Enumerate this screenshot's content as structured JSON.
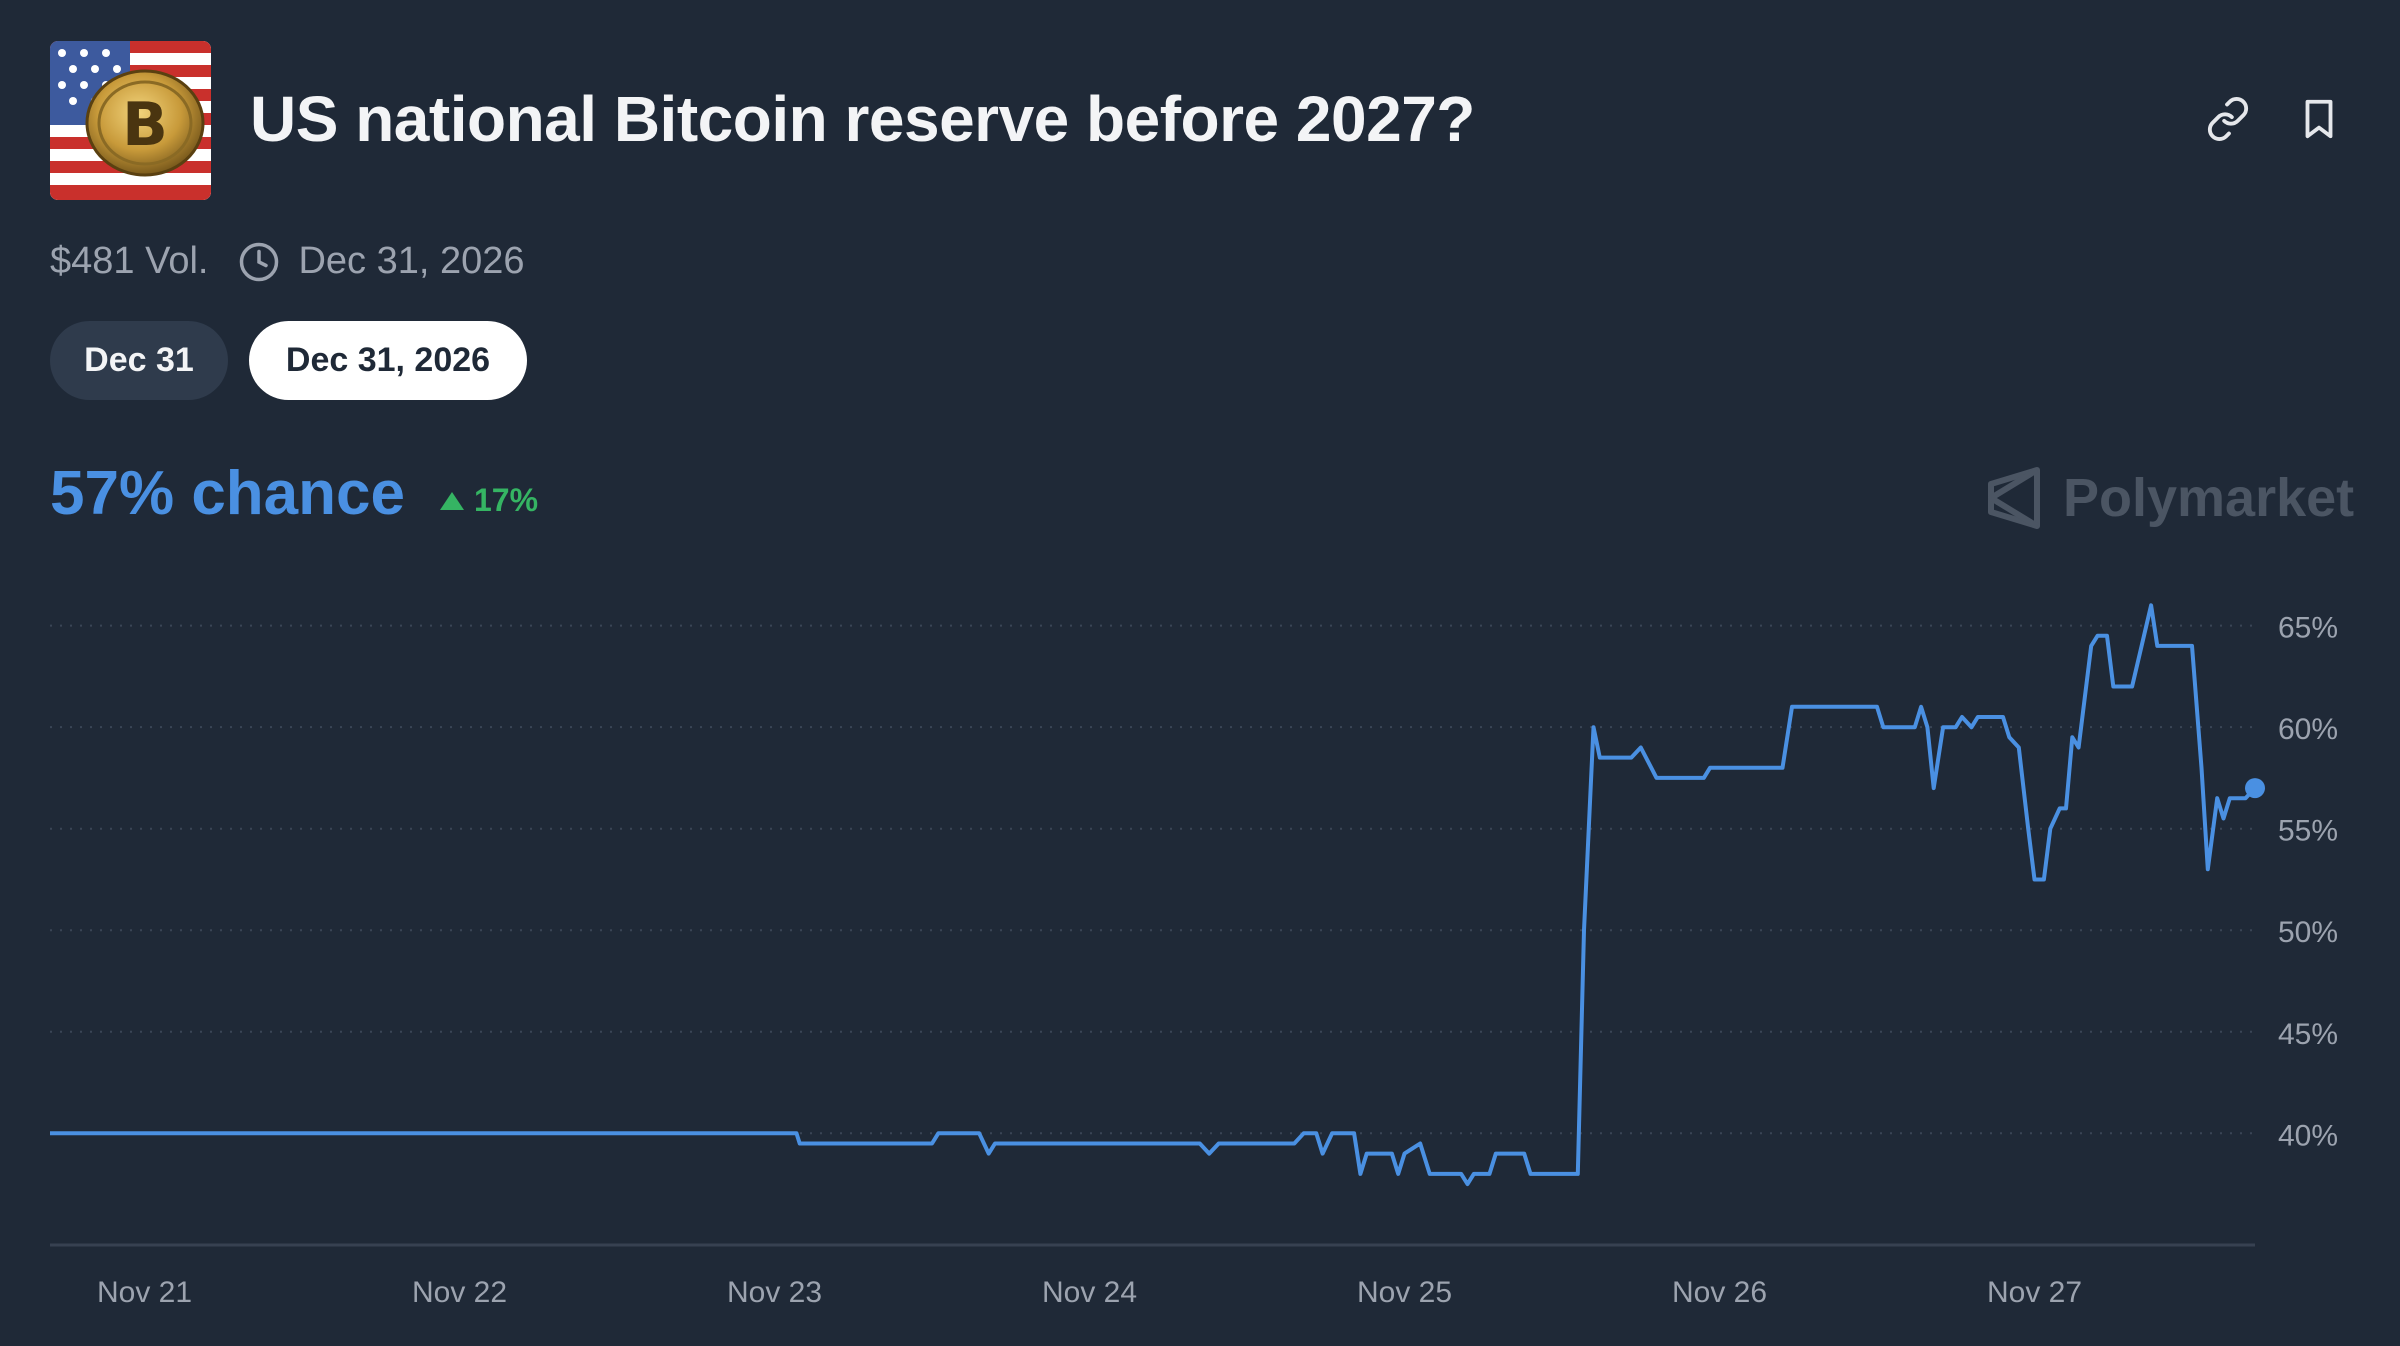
{
  "market": {
    "title": "US national Bitcoin reserve before 2027?",
    "image_icon": "bitcoin-flag-image",
    "volume": "$481 Vol.",
    "end_date": "Dec 31, 2026",
    "link_icon": "link-icon",
    "bookmark_icon": "bookmark-icon",
    "clock_icon": "clock-icon"
  },
  "tabs": [
    {
      "label": "Dec 31",
      "selected": false
    },
    {
      "label": "Dec 31, 2026",
      "selected": true
    }
  ],
  "summary": {
    "chance": "57% chance",
    "change": "17%",
    "change_direction": "up",
    "change_color": "#35b463",
    "accent_color": "#4a90e2"
  },
  "brand": {
    "name": "Polymarket",
    "icon": "polymarket-logo-icon"
  },
  "chart_data": {
    "type": "line",
    "title": "",
    "xlabel": "",
    "ylabel": "",
    "x_ticks": [
      "Nov 21",
      "Nov 22",
      "Nov 23",
      "Nov 24",
      "Nov 25",
      "Nov 26",
      "Nov 27"
    ],
    "y_ticks": [
      "40%",
      "45%",
      "50%",
      "55%",
      "60%",
      "65%"
    ],
    "y_tick_values": [
      40,
      45,
      50,
      55,
      60,
      65
    ],
    "ylim": [
      34.5,
      67
    ],
    "xlim": [
      -0.3,
      6.7
    ],
    "grid": true,
    "y_axis_position": "right",
    "series": [
      {
        "color": "#4a90e2",
        "points": [
          [
            -0.3,
            40
          ],
          [
            2.07,
            40
          ],
          [
            2.08,
            39.5
          ],
          [
            2.5,
            39.5
          ],
          [
            2.52,
            40
          ],
          [
            2.65,
            40
          ],
          [
            2.68,
            39
          ],
          [
            2.7,
            39.5
          ],
          [
            3.35,
            39.5
          ],
          [
            3.38,
            39
          ],
          [
            3.41,
            39.5
          ],
          [
            3.65,
            39.5
          ],
          [
            3.68,
            40
          ],
          [
            3.72,
            40
          ],
          [
            3.74,
            39
          ],
          [
            3.77,
            40
          ],
          [
            3.84,
            40
          ],
          [
            3.86,
            38
          ],
          [
            3.88,
            39
          ],
          [
            3.96,
            39
          ],
          [
            3.98,
            38
          ],
          [
            4.0,
            39
          ],
          [
            4.05,
            39.5
          ],
          [
            4.08,
            38
          ],
          [
            4.18,
            38
          ],
          [
            4.2,
            37.5
          ],
          [
            4.22,
            38
          ],
          [
            4.27,
            38
          ],
          [
            4.29,
            39
          ],
          [
            4.38,
            39
          ],
          [
            4.4,
            38
          ],
          [
            4.55,
            38
          ],
          [
            4.57,
            50
          ],
          [
            4.6,
            60
          ],
          [
            4.62,
            58.5
          ],
          [
            4.72,
            58.5
          ],
          [
            4.75,
            59
          ],
          [
            4.8,
            57.5
          ],
          [
            4.95,
            57.5
          ],
          [
            4.97,
            58
          ],
          [
            5.2,
            58
          ],
          [
            5.23,
            61
          ],
          [
            5.5,
            61
          ],
          [
            5.52,
            60
          ],
          [
            5.62,
            60
          ],
          [
            5.64,
            61
          ],
          [
            5.66,
            60
          ],
          [
            5.68,
            57
          ],
          [
            5.71,
            60
          ],
          [
            5.75,
            60
          ],
          [
            5.77,
            60.5
          ],
          [
            5.8,
            60
          ],
          [
            5.82,
            60.5
          ],
          [
            5.9,
            60.5
          ],
          [
            5.92,
            59.5
          ],
          [
            5.95,
            59
          ],
          [
            5.98,
            55
          ],
          [
            6.0,
            52.5
          ],
          [
            6.03,
            52.5
          ],
          [
            6.05,
            55
          ],
          [
            6.08,
            56
          ],
          [
            6.1,
            56
          ],
          [
            6.12,
            59.5
          ],
          [
            6.14,
            59
          ],
          [
            6.18,
            64
          ],
          [
            6.2,
            64.5
          ],
          [
            6.23,
            64.5
          ],
          [
            6.25,
            62
          ],
          [
            6.31,
            62
          ],
          [
            6.34,
            64
          ],
          [
            6.37,
            66
          ],
          [
            6.39,
            64
          ],
          [
            6.5,
            64
          ],
          [
            6.53,
            58
          ],
          [
            6.55,
            53
          ],
          [
            6.58,
            56.5
          ],
          [
            6.6,
            55.5
          ],
          [
            6.62,
            56.5
          ],
          [
            6.67,
            56.5
          ],
          [
            6.7,
            57
          ]
        ]
      }
    ]
  }
}
